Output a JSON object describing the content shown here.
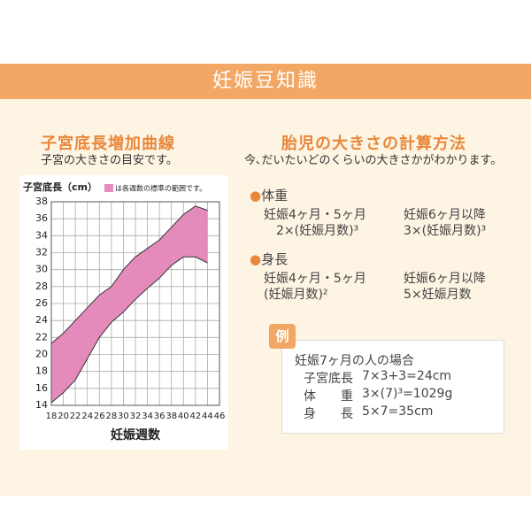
{
  "header": {
    "title": "妊娠豆知識"
  },
  "left": {
    "title": "子宮底長増加曲線",
    "subtitle": "子宮の大きさの目安です。"
  },
  "chart": {
    "type": "area-band",
    "y_label": "子宮底長（cm）",
    "x_label": "妊娠週数",
    "legend": "は各週数の標準の範囲です。",
    "color": "#e58bbb",
    "edge_color": "#333333",
    "x": [
      18,
      20,
      22,
      24,
      26,
      28,
      30,
      32,
      34,
      36,
      38,
      40,
      42,
      44
    ],
    "upper": [
      21.3,
      22.5,
      24,
      25.5,
      27,
      28,
      30,
      31.5,
      32.5,
      33.5,
      35,
      36.5,
      37.5,
      37
    ],
    "lower": [
      14.3,
      15.5,
      17,
      19.5,
      22,
      23.8,
      25,
      26.5,
      27.8,
      29,
      30.5,
      31.5,
      31.5,
      30.8
    ],
    "xlim": [
      18,
      46
    ],
    "ylim": [
      14,
      38
    ],
    "xticks": [
      18,
      20,
      22,
      24,
      26,
      28,
      30,
      32,
      34,
      36,
      38,
      40,
      42,
      44,
      46
    ],
    "yticks": [
      14,
      16,
      18,
      20,
      22,
      24,
      26,
      28,
      30,
      32,
      34,
      36,
      38
    ],
    "grid": true
  },
  "right": {
    "title": "胎児の大きさの計算方法",
    "subtitle": "今､だいたいどのくらいの大きさかがわかります。",
    "sections": [
      {
        "label": "体重",
        "items": [
          [
            "妊娠4ヶ月・5ヶ月",
            "2×(妊娠月数)³"
          ],
          [
            "妊娠6ヶ月以降",
            "3×(妊娠月数)³"
          ]
        ]
      },
      {
        "label": "身長",
        "items": [
          [
            "妊娠4ヶ月・5ヶ月",
            "(妊娠月数)²"
          ],
          [
            "妊娠6ヶ月以降",
            "5×妊娠月数"
          ]
        ]
      }
    ],
    "example": {
      "badge": "例",
      "title": "妊娠7ヶ月の人の場合",
      "rows": [
        [
          "子宮底長",
          "7×3+3=24cm"
        ],
        [
          "体　　重",
          "3×(7)³=1029g"
        ],
        [
          "身　　長",
          "5×7=35cm"
        ]
      ]
    }
  }
}
